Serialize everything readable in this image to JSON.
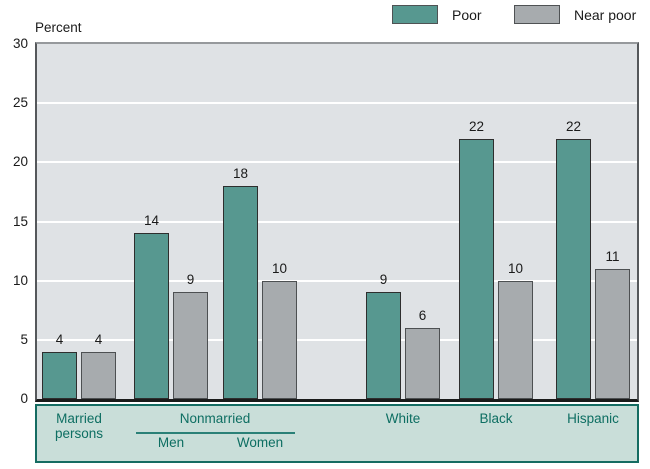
{
  "ylabel": "Percent",
  "legend": {
    "poor_label": "Poor",
    "near_poor_label": "Near poor"
  },
  "colors": {
    "poor": "#579890",
    "near_poor": "#A7ABAE",
    "plot_background": "#DFE2E5",
    "gridline": "#FFFFFF",
    "label_box_background": "#C9DED9",
    "label_box_border": "#156C62",
    "label_text": "#0D6E62"
  },
  "chart_data": {
    "type": "bar",
    "title": "",
    "ylabel": "Percent",
    "ylim": [
      0,
      30
    ],
    "yticks": [
      0,
      5,
      10,
      15,
      20,
      25,
      30
    ],
    "grid": true,
    "legend_position": "top-right",
    "categories": [
      "Married persons",
      "Nonmarried Men",
      "Nonmarried Women",
      "White",
      "Black",
      "Hispanic"
    ],
    "series": [
      {
        "name": "Poor",
        "color": "#579890",
        "values": [
          4,
          14,
          18,
          9,
          22,
          22
        ]
      },
      {
        "name": "Near poor",
        "color": "#A7ABAE",
        "values": [
          4,
          9,
          10,
          6,
          10,
          11
        ]
      }
    ],
    "category_labels": {
      "married_line1": "Married",
      "married_line2": "persons",
      "nonmarried": "Nonmarried",
      "men": "Men",
      "women": "Women",
      "white": "White",
      "black": "Black",
      "hispanic": "Hispanic"
    }
  }
}
